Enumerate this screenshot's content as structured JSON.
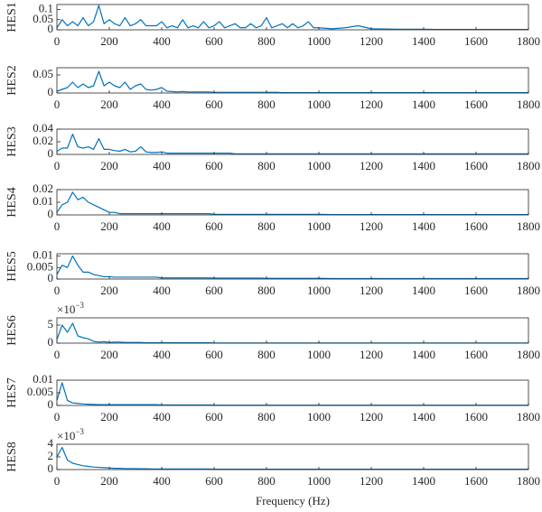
{
  "chart_data": [
    {
      "type": "line",
      "ylabel": "HES1",
      "color": "#0072bd",
      "xlim": [
        0,
        1800
      ],
      "xticks": [
        0,
        200,
        400,
        600,
        800,
        1000,
        1200,
        1400,
        1600,
        1800
      ],
      "ylim": [
        0,
        0.125
      ],
      "yticks": [
        0,
        0.05,
        0.1
      ],
      "x": [
        0,
        20,
        40,
        60,
        80,
        100,
        120,
        140,
        160,
        180,
        200,
        220,
        240,
        260,
        280,
        300,
        320,
        340,
        360,
        380,
        400,
        420,
        440,
        460,
        480,
        500,
        520,
        540,
        560,
        580,
        600,
        620,
        640,
        660,
        680,
        700,
        720,
        740,
        760,
        780,
        800,
        820,
        840,
        860,
        880,
        900,
        920,
        940,
        960,
        980,
        1000,
        1050,
        1100,
        1150,
        1200,
        1250,
        1300,
        1350,
        1400,
        1450,
        1500,
        1550,
        1600,
        1650,
        1700,
        1750,
        1800
      ],
      "values": [
        0.01,
        0.05,
        0.02,
        0.04,
        0.02,
        0.06,
        0.02,
        0.04,
        0.12,
        0.03,
        0.05,
        0.03,
        0.02,
        0.06,
        0.02,
        0.03,
        0.05,
        0.02,
        0.02,
        0.02,
        0.04,
        0.01,
        0.02,
        0.01,
        0.05,
        0.01,
        0.02,
        0.01,
        0.04,
        0.01,
        0.02,
        0.04,
        0.01,
        0.02,
        0.03,
        0.01,
        0.01,
        0.03,
        0.01,
        0.02,
        0.06,
        0.01,
        0.02,
        0.03,
        0.01,
        0.03,
        0.01,
        0.02,
        0.04,
        0.01,
        0.01,
        0.005,
        0.01,
        0.02,
        0.005,
        0.004,
        0.003,
        0.003,
        0.003,
        0.002,
        0.002,
        0.002,
        0.002,
        0.002,
        0.002,
        0.002,
        0.002
      ]
    },
    {
      "type": "line",
      "ylabel": "HES2",
      "color": "#0072bd",
      "xlim": [
        0,
        1800
      ],
      "xticks": [
        0,
        200,
        400,
        600,
        800,
        1000,
        1200,
        1400,
        1600,
        1800
      ],
      "ylim": [
        0,
        0.07
      ],
      "yticks": [
        0,
        0.05
      ],
      "x": [
        0,
        20,
        40,
        60,
        80,
        100,
        120,
        140,
        160,
        180,
        200,
        220,
        240,
        260,
        280,
        300,
        320,
        340,
        360,
        380,
        400,
        420,
        440,
        460,
        480,
        500,
        520,
        540,
        560,
        580,
        600,
        620,
        640,
        660,
        680,
        700,
        720,
        740,
        760,
        780,
        800,
        820,
        840,
        860,
        880,
        900,
        920,
        940,
        960,
        980,
        1000,
        1050,
        1100,
        1150,
        1200,
        1250,
        1300,
        1350,
        1400,
        1450,
        1500,
        1550,
        1600,
        1650,
        1700,
        1750,
        1800
      ],
      "values": [
        0.005,
        0.01,
        0.015,
        0.03,
        0.015,
        0.025,
        0.015,
        0.02,
        0.06,
        0.02,
        0.03,
        0.02,
        0.015,
        0.03,
        0.01,
        0.02,
        0.025,
        0.01,
        0.008,
        0.01,
        0.015,
        0.005,
        0.004,
        0.003,
        0.004,
        0.003,
        0.003,
        0.003,
        0.003,
        0.003,
        0.002,
        0.002,
        0.002,
        0.002,
        0.002,
        0.002,
        0.002,
        0.002,
        0.002,
        0.002,
        0.002,
        0.002,
        0.002,
        0.001,
        0.001,
        0.001,
        0.001,
        0.001,
        0.001,
        0.001,
        0.001,
        0.001,
        0.001,
        0.001,
        0.001,
        0.001,
        0.001,
        0.001,
        0.001,
        0.001,
        0.001,
        0.001,
        0.001,
        0.001,
        0.001,
        0.001,
        0.001
      ]
    },
    {
      "type": "line",
      "ylabel": "HES3",
      "color": "#0072bd",
      "xlim": [
        0,
        1800
      ],
      "xticks": [
        0,
        200,
        400,
        600,
        800,
        1000,
        1200,
        1400,
        1600,
        1800
      ],
      "ylim": [
        0,
        0.04
      ],
      "yticks": [
        0,
        0.02,
        0.04
      ],
      "x": [
        0,
        20,
        40,
        60,
        80,
        100,
        120,
        140,
        160,
        180,
        200,
        220,
        240,
        260,
        280,
        300,
        320,
        340,
        360,
        380,
        400,
        420,
        440,
        460,
        480,
        500,
        520,
        540,
        560,
        580,
        600,
        620,
        640,
        660,
        680,
        700,
        720,
        740,
        760,
        780,
        800,
        820,
        840,
        860,
        880,
        900,
        920,
        940,
        960,
        980,
        1000,
        1050,
        1100,
        1150,
        1200,
        1250,
        1300,
        1350,
        1400,
        1450,
        1500,
        1550,
        1600,
        1650,
        1700,
        1750,
        1800
      ],
      "values": [
        0.005,
        0.01,
        0.01,
        0.032,
        0.012,
        0.01,
        0.012,
        0.008,
        0.025,
        0.008,
        0.008,
        0.006,
        0.005,
        0.008,
        0.004,
        0.005,
        0.012,
        0.004,
        0.003,
        0.003,
        0.004,
        0.002,
        0.002,
        0.002,
        0.002,
        0.002,
        0.002,
        0.002,
        0.002,
        0.002,
        0.002,
        0.002,
        0.002,
        0.002,
        0.001,
        0.001,
        0.001,
        0.001,
        0.001,
        0.001,
        0.001,
        0.001,
        0.001,
        0.001,
        0.001,
        0.001,
        0.001,
        0.001,
        0.001,
        0.001,
        0.001,
        0.001,
        0.001,
        0.001,
        0.001,
        0.001,
        0.001,
        0.001,
        0.001,
        0.001,
        0.001,
        0.001,
        0.001,
        0.001,
        0.001,
        0.001,
        0.001
      ]
    },
    {
      "type": "line",
      "ylabel": "HES4",
      "color": "#0072bd",
      "xlim": [
        0,
        1800
      ],
      "xticks": [
        0,
        200,
        400,
        600,
        800,
        1000,
        1200,
        1400,
        1600,
        1800
      ],
      "ylim": [
        0,
        0.02
      ],
      "yticks": [
        0,
        0.01,
        0.02
      ],
      "x": [
        0,
        20,
        40,
        60,
        80,
        100,
        120,
        140,
        160,
        180,
        200,
        220,
        240,
        260,
        280,
        300,
        320,
        340,
        360,
        380,
        400,
        420,
        440,
        460,
        480,
        500,
        520,
        540,
        560,
        580,
        600,
        620,
        640,
        660,
        680,
        700,
        720,
        740,
        760,
        780,
        800,
        820,
        840,
        860,
        880,
        900,
        920,
        940,
        960,
        980,
        1000,
        1050,
        1100,
        1150,
        1200,
        1250,
        1300,
        1350,
        1400,
        1450,
        1500,
        1550,
        1600,
        1650,
        1700,
        1750,
        1800
      ],
      "values": [
        0.002,
        0.008,
        0.01,
        0.018,
        0.012,
        0.014,
        0.01,
        0.008,
        0.006,
        0.004,
        0.002,
        0.002,
        0.001,
        0.001,
        0.001,
        0.001,
        0.001,
        0.001,
        0.001,
        0.001,
        0.001,
        0.001,
        0.001,
        0.001,
        0.001,
        0.001,
        0.001,
        0.001,
        0.001,
        0.001,
        0.0005,
        0.0005,
        0.0005,
        0.0005,
        0.0005,
        0.0005,
        0.0005,
        0.0005,
        0.0005,
        0.0005,
        0.0005,
        0.0005,
        0.0005,
        0.0005,
        0.0005,
        0.0005,
        0.0005,
        0.0005,
        0.0005,
        0.0005,
        0.0005,
        0.0003,
        0.0003,
        0.0003,
        0.0003,
        0.0003,
        0.0003,
        0.0003,
        0.0003,
        0.0003,
        0.0003,
        0.0003,
        0.0003,
        0.0003,
        0.0003,
        0.0003,
        0.0003
      ]
    },
    {
      "type": "line",
      "ylabel": "HES5",
      "color": "#0072bd",
      "xlim": [
        0,
        1800
      ],
      "xticks": [
        0,
        200,
        400,
        600,
        800,
        1000,
        1200,
        1400,
        1600,
        1800
      ],
      "ylim": [
        0,
        0.011
      ],
      "yticks": [
        0,
        0.005,
        0.01
      ],
      "x": [
        0,
        20,
        40,
        60,
        80,
        100,
        120,
        140,
        160,
        180,
        200,
        220,
        240,
        260,
        280,
        300,
        320,
        340,
        360,
        380,
        400,
        420,
        440,
        460,
        480,
        500,
        520,
        540,
        560,
        580,
        600,
        620,
        640,
        660,
        680,
        700,
        720,
        740,
        760,
        780,
        800,
        820,
        840,
        860,
        880,
        900,
        920,
        940,
        960,
        980,
        1000,
        1050,
        1100,
        1150,
        1200,
        1250,
        1300,
        1350,
        1400,
        1450,
        1500,
        1550,
        1600,
        1650,
        1700,
        1750,
        1800
      ],
      "values": [
        0.002,
        0.006,
        0.005,
        0.01,
        0.006,
        0.003,
        0.003,
        0.002,
        0.0015,
        0.001,
        0.001,
        0.0008,
        0.0008,
        0.0008,
        0.0008,
        0.0008,
        0.0008,
        0.0008,
        0.0008,
        0.0008,
        0.0005,
        0.0005,
        0.0005,
        0.0005,
        0.0005,
        0.0005,
        0.0005,
        0.0005,
        0.0005,
        0.0005,
        0.0004,
        0.0004,
        0.0004,
        0.0004,
        0.0004,
        0.0004,
        0.0004,
        0.0004,
        0.0004,
        0.0004,
        0.0003,
        0.0003,
        0.0003,
        0.0003,
        0.0003,
        0.0003,
        0.0003,
        0.0003,
        0.0003,
        0.0003,
        0.0003,
        0.0002,
        0.0002,
        0.0002,
        0.0002,
        0.0002,
        0.0002,
        0.0002,
        0.0002,
        0.0002,
        0.0002,
        0.0002,
        0.0002,
        0.0002,
        0.0002,
        0.0002,
        0.0002
      ]
    },
    {
      "type": "line",
      "ylabel": "HES6",
      "y_multiplier": "×10",
      "y_multiplier_exponent": "−3",
      "color": "#0072bd",
      "xlim": [
        0,
        1800
      ],
      "xticks": [
        0,
        200,
        400,
        600,
        800,
        1000,
        1200,
        1400,
        1600,
        1800
      ],
      "ylim": [
        0,
        7
      ],
      "yticks": [
        0,
        5
      ],
      "x": [
        0,
        20,
        40,
        60,
        80,
        100,
        120,
        140,
        160,
        180,
        200,
        220,
        240,
        260,
        280,
        300,
        320,
        340,
        360,
        380,
        400,
        420,
        440,
        460,
        480,
        500,
        520,
        540,
        560,
        580,
        600,
        620,
        640,
        660,
        680,
        700,
        720,
        740,
        760,
        780,
        800,
        820,
        840,
        860,
        880,
        900,
        920,
        940,
        960,
        980,
        1000,
        1050,
        1100,
        1150,
        1200,
        1250,
        1300,
        1350,
        1400,
        1450,
        1500,
        1550,
        1600,
        1650,
        1700,
        1750,
        1800
      ],
      "values": [
        1,
        5,
        3,
        5.5,
        2,
        1.5,
        1.2,
        0.5,
        0.3,
        0.4,
        0.2,
        0.3,
        0.3,
        0.2,
        0.2,
        0.2,
        0.2,
        0.1,
        0.1,
        0.1,
        0.1,
        0.1,
        0.1,
        0.1,
        0.1,
        0.1,
        0.1,
        0.1,
        0.1,
        0.1,
        0.05,
        0.05,
        0.05,
        0.05,
        0.05,
        0.05,
        0.05,
        0.05,
        0.05,
        0.05,
        0.05,
        0.05,
        0.05,
        0.05,
        0.05,
        0.05,
        0.05,
        0.05,
        0.05,
        0.05,
        0.05,
        0.05,
        0.05,
        0.05,
        0.05,
        0.05,
        0.05,
        0.05,
        0.05,
        0.05,
        0.05,
        0.05,
        0.05,
        0.05,
        0.05,
        0.05,
        0.05
      ]
    },
    {
      "type": "line",
      "ylabel": "HES7",
      "color": "#0072bd",
      "xlim": [
        0,
        1800
      ],
      "xticks": [
        0,
        200,
        400,
        600,
        800,
        1000,
        1200,
        1400,
        1600,
        1800
      ],
      "ylim": [
        0,
        0.01
      ],
      "yticks": [
        0,
        0.005,
        0.01
      ],
      "x": [
        0,
        20,
        40,
        60,
        80,
        100,
        120,
        140,
        160,
        180,
        200,
        220,
        240,
        260,
        280,
        300,
        320,
        340,
        360,
        380,
        400,
        420,
        440,
        460,
        480,
        500,
        520,
        540,
        560,
        580,
        600,
        620,
        640,
        660,
        680,
        700,
        720,
        740,
        760,
        780,
        800,
        820,
        840,
        860,
        880,
        900,
        920,
        940,
        960,
        980,
        1000,
        1050,
        1100,
        1150,
        1200,
        1250,
        1300,
        1350,
        1400,
        1450,
        1500,
        1550,
        1600,
        1650,
        1700,
        1750,
        1800
      ],
      "values": [
        0.002,
        0.009,
        0.002,
        0.001,
        0.0008,
        0.0006,
        0.0005,
        0.0004,
        0.0003,
        0.0003,
        0.0003,
        0.0003,
        0.0003,
        0.0003,
        0.0003,
        0.0003,
        0.0003,
        0.0003,
        0.0003,
        0.0003,
        0.0002,
        0.0002,
        0.0002,
        0.0002,
        0.0002,
        0.0002,
        0.0002,
        0.0002,
        0.0002,
        0.0002,
        0.0001,
        0.0001,
        0.0001,
        0.0001,
        0.0001,
        0.0001,
        0.0001,
        0.0001,
        0.0001,
        0.0001,
        0.0001,
        0.0001,
        0.0001,
        0.0001,
        0.0001,
        0.0001,
        0.0001,
        0.0001,
        0.0001,
        0.0001,
        0.0001,
        0.0001,
        0.0001,
        0.0001,
        0.0001,
        0.0001,
        0.0001,
        0.0001,
        0.0001,
        0.0001,
        0.0001,
        0.0001,
        0.0001,
        0.0001,
        0.0001,
        0.0001,
        0.0001
      ]
    },
    {
      "type": "line",
      "ylabel": "HES8",
      "y_multiplier": "×10",
      "y_multiplier_exponent": "−3",
      "xlabel": "Frequency (Hz)",
      "color": "#0072bd",
      "xlim": [
        0,
        1800
      ],
      "xticks": [
        0,
        200,
        400,
        600,
        800,
        1000,
        1200,
        1400,
        1600,
        1800
      ],
      "ylim": [
        0,
        4
      ],
      "yticks": [
        0,
        2,
        4
      ],
      "x": [
        0,
        20,
        40,
        60,
        80,
        100,
        120,
        140,
        160,
        180,
        200,
        220,
        240,
        260,
        280,
        300,
        320,
        340,
        360,
        380,
        400,
        420,
        440,
        460,
        480,
        500,
        520,
        540,
        560,
        580,
        600,
        620,
        640,
        660,
        680,
        700,
        720,
        740,
        760,
        780,
        800,
        820,
        840,
        860,
        880,
        900,
        920,
        940,
        960,
        980,
        1000,
        1050,
        1100,
        1150,
        1200,
        1250,
        1300,
        1350,
        1400,
        1450,
        1500,
        1550,
        1600,
        1650,
        1700,
        1750,
        1800
      ],
      "values": [
        2,
        3.5,
        1.5,
        1,
        0.8,
        0.6,
        0.5,
        0.4,
        0.35,
        0.3,
        0.25,
        0.2,
        0.2,
        0.15,
        0.15,
        0.15,
        0.12,
        0.12,
        0.1,
        0.1,
        0.1,
        0.1,
        0.1,
        0.1,
        0.1,
        0.1,
        0.1,
        0.1,
        0.1,
        0.1,
        0.05,
        0.05,
        0.05,
        0.05,
        0.05,
        0.05,
        0.05,
        0.05,
        0.05,
        0.05,
        0.05,
        0.05,
        0.05,
        0.05,
        0.05,
        0.05,
        0.05,
        0.05,
        0.05,
        0.05,
        0.05,
        0.05,
        0.05,
        0.05,
        0.05,
        0.05,
        0.05,
        0.05,
        0.05,
        0.05,
        0.05,
        0.05,
        0.05,
        0.05,
        0.05,
        0.05,
        0.05
      ]
    }
  ]
}
